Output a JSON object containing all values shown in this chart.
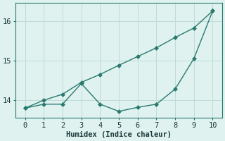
{
  "x": [
    0,
    1,
    2,
    3,
    4,
    5,
    6,
    7,
    8,
    9,
    10
  ],
  "line1": [
    13.8,
    14.0,
    14.15,
    14.45,
    14.65,
    14.88,
    15.1,
    15.32,
    15.58,
    15.82,
    16.25
  ],
  "line2": [
    13.8,
    13.9,
    13.9,
    14.42,
    13.9,
    13.72,
    13.82,
    13.9,
    14.28,
    15.05,
    16.25
  ],
  "line_color": "#2a7a6f",
  "bg_color": "#dff2f0",
  "grid_color": "#c0dbd8",
  "xlabel": "Humidex (Indice chaleur)",
  "ylim": [
    13.55,
    16.45
  ],
  "xlim": [
    -0.5,
    10.5
  ],
  "yticks": [
    14,
    15,
    16
  ],
  "xticks": [
    0,
    1,
    2,
    3,
    4,
    5,
    6,
    7,
    8,
    9,
    10
  ],
  "xlabel_fontsize": 7.5,
  "tick_fontsize": 7.5,
  "linewidth": 1.0,
  "markersize": 3
}
